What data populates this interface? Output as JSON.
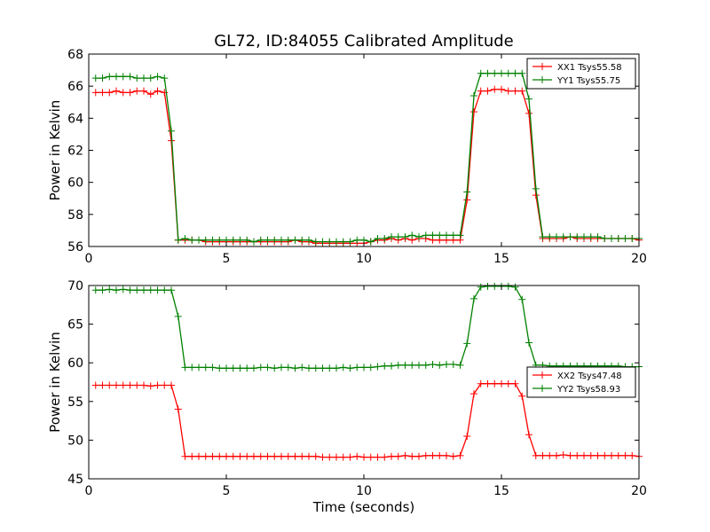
{
  "figure": {
    "title": "GL72, ID:84055 Calibrated Amplitude"
  },
  "chart_data": [
    {
      "type": "line",
      "title": "GL72, ID:84055 Calibrated Amplitude",
      "xlabel": "",
      "ylabel": "Power in Kelvin",
      "xlim": [
        0,
        20
      ],
      "ylim": [
        56,
        68
      ],
      "xticks": [
        0,
        5,
        10,
        15,
        20
      ],
      "yticks": [
        56,
        58,
        60,
        62,
        64,
        66,
        68
      ],
      "x": [
        0.25,
        0.5,
        0.75,
        1.0,
        1.25,
        1.5,
        1.75,
        2.0,
        2.25,
        2.5,
        2.75,
        3.0,
        3.25,
        3.5,
        3.75,
        4.0,
        4.25,
        4.5,
        4.75,
        5.0,
        5.25,
        5.5,
        5.75,
        6.0,
        6.25,
        6.5,
        6.75,
        7.0,
        7.25,
        7.5,
        7.75,
        8.0,
        8.25,
        8.5,
        8.75,
        9.0,
        9.25,
        9.5,
        9.75,
        10.0,
        10.25,
        10.5,
        10.75,
        11.0,
        11.25,
        11.5,
        11.75,
        12.0,
        12.25,
        12.5,
        12.75,
        13.0,
        13.25,
        13.5,
        13.75,
        14.0,
        14.25,
        14.5,
        14.75,
        15.0,
        15.25,
        15.5,
        15.75,
        16.0,
        16.25,
        16.5,
        16.75,
        17.0,
        17.25,
        17.5,
        17.75,
        18.0,
        18.25,
        18.5,
        18.75,
        19.0,
        19.25,
        19.5,
        19.75,
        20.0
      ],
      "series": [
        {
          "name": "XX1 Tsys55.58",
          "color": "#ff0000",
          "values": [
            65.6,
            65.6,
            65.6,
            65.7,
            65.6,
            65.6,
            65.7,
            65.7,
            65.5,
            65.7,
            65.6,
            62.6,
            56.4,
            56.4,
            56.4,
            56.4,
            56.3,
            56.3,
            56.3,
            56.3,
            56.3,
            56.3,
            56.3,
            56.3,
            56.3,
            56.3,
            56.3,
            56.3,
            56.3,
            56.4,
            56.3,
            56.3,
            56.2,
            56.2,
            56.2,
            56.2,
            56.2,
            56.2,
            56.2,
            56.2,
            56.3,
            56.4,
            56.4,
            56.5,
            56.4,
            56.5,
            56.4,
            56.5,
            56.5,
            56.4,
            56.4,
            56.4,
            56.4,
            56.4,
            58.9,
            64.4,
            65.7,
            65.7,
            65.8,
            65.8,
            65.7,
            65.7,
            65.7,
            64.3,
            59.2,
            56.5,
            56.5,
            56.5,
            56.5,
            56.6,
            56.5,
            56.5,
            56.5,
            56.5,
            56.5,
            56.5,
            56.5,
            56.5,
            56.5,
            56.4
          ]
        },
        {
          "name": "YY1 Tsys55.75",
          "color": "#008000",
          "values": [
            66.5,
            66.5,
            66.6,
            66.6,
            66.6,
            66.6,
            66.5,
            66.5,
            66.5,
            66.6,
            66.5,
            63.2,
            56.4,
            56.5,
            56.4,
            56.4,
            56.4,
            56.4,
            56.4,
            56.4,
            56.4,
            56.4,
            56.4,
            56.3,
            56.4,
            56.4,
            56.4,
            56.4,
            56.4,
            56.4,
            56.4,
            56.4,
            56.3,
            56.3,
            56.3,
            56.3,
            56.3,
            56.3,
            56.4,
            56.4,
            56.3,
            56.5,
            56.5,
            56.6,
            56.6,
            56.6,
            56.7,
            56.6,
            56.7,
            56.7,
            56.7,
            56.7,
            56.7,
            56.7,
            59.4,
            65.4,
            66.8,
            66.8,
            66.8,
            66.8,
            66.8,
            66.8,
            66.8,
            65.2,
            59.6,
            56.6,
            56.6,
            56.6,
            56.6,
            56.6,
            56.6,
            56.6,
            56.6,
            56.6,
            56.5,
            56.5,
            56.5,
            56.5,
            56.5,
            56.5
          ]
        }
      ],
      "legend": "top-right"
    },
    {
      "type": "line",
      "title": "",
      "xlabel": "Time (seconds)",
      "ylabel": "Power in Kelvin",
      "xlim": [
        0,
        20
      ],
      "ylim": [
        45,
        70
      ],
      "xticks": [
        0,
        5,
        10,
        15,
        20
      ],
      "yticks": [
        45,
        50,
        55,
        60,
        65,
        70
      ],
      "x": [
        0.25,
        0.5,
        0.75,
        1.0,
        1.25,
        1.5,
        1.75,
        2.0,
        2.25,
        2.5,
        2.75,
        3.0,
        3.25,
        3.5,
        3.75,
        4.0,
        4.25,
        4.5,
        4.75,
        5.0,
        5.25,
        5.5,
        5.75,
        6.0,
        6.25,
        6.5,
        6.75,
        7.0,
        7.25,
        7.5,
        7.75,
        8.0,
        8.25,
        8.5,
        8.75,
        9.0,
        9.25,
        9.5,
        9.75,
        10.0,
        10.25,
        10.5,
        10.75,
        11.0,
        11.25,
        11.5,
        11.75,
        12.0,
        12.25,
        12.5,
        12.75,
        13.0,
        13.25,
        13.5,
        13.75,
        14.0,
        14.25,
        14.5,
        14.75,
        15.0,
        15.25,
        15.5,
        15.75,
        16.0,
        16.25,
        16.5,
        16.75,
        17.0,
        17.25,
        17.5,
        17.75,
        18.0,
        18.25,
        18.5,
        18.75,
        19.0,
        19.25,
        19.5,
        19.75,
        20.0
      ],
      "series": [
        {
          "name": "XX2 Tsys47.48",
          "color": "#ff0000",
          "values": [
            57.1,
            57.1,
            57.1,
            57.1,
            57.1,
            57.1,
            57.1,
            57.1,
            57.0,
            57.1,
            57.1,
            57.1,
            54.0,
            47.9,
            47.9,
            47.9,
            47.9,
            47.9,
            47.9,
            47.9,
            47.9,
            47.9,
            47.9,
            47.9,
            47.9,
            47.9,
            47.9,
            47.9,
            47.9,
            47.9,
            47.9,
            47.9,
            47.9,
            47.8,
            47.8,
            47.8,
            47.8,
            47.8,
            47.9,
            47.8,
            47.8,
            47.8,
            47.8,
            47.9,
            47.9,
            48.0,
            47.9,
            47.9,
            48.0,
            48.0,
            48.0,
            48.0,
            47.9,
            48.0,
            50.5,
            56.0,
            57.3,
            57.3,
            57.3,
            57.3,
            57.3,
            57.3,
            55.7,
            50.7,
            48.0,
            48.0,
            48.0,
            48.0,
            48.1,
            48.0,
            48.0,
            48.0,
            48.0,
            48.0,
            48.0,
            48.0,
            48.0,
            48.0,
            48.0,
            47.9
          ]
        },
        {
          "name": "YY2 Tsys58.93",
          "color": "#008000",
          "values": [
            69.4,
            69.4,
            69.5,
            69.4,
            69.5,
            69.4,
            69.4,
            69.4,
            69.4,
            69.4,
            69.4,
            69.4,
            66.0,
            59.4,
            59.4,
            59.4,
            59.4,
            59.4,
            59.3,
            59.3,
            59.3,
            59.3,
            59.3,
            59.3,
            59.4,
            59.4,
            59.3,
            59.4,
            59.4,
            59.3,
            59.4,
            59.3,
            59.3,
            59.3,
            59.3,
            59.3,
            59.4,
            59.3,
            59.4,
            59.4,
            59.4,
            59.5,
            59.6,
            59.6,
            59.7,
            59.7,
            59.7,
            59.7,
            59.7,
            59.8,
            59.7,
            59.8,
            59.8,
            59.7,
            62.5,
            68.3,
            69.8,
            69.9,
            69.9,
            69.9,
            69.9,
            69.8,
            68.2,
            62.6,
            59.7,
            59.7,
            59.6,
            59.6,
            59.6,
            59.6,
            59.6,
            59.6,
            59.6,
            59.6,
            59.6,
            59.6,
            59.6,
            59.5,
            59.5,
            59.5
          ]
        }
      ],
      "legend": "right"
    }
  ]
}
